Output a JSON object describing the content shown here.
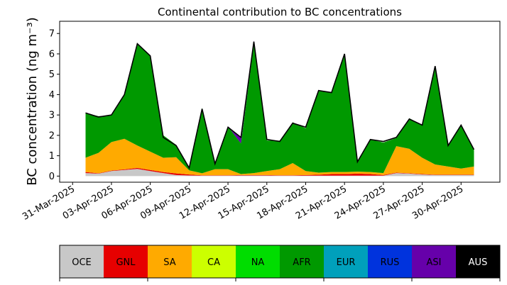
{
  "chart_data": {
    "type": "area",
    "stacked": true,
    "title": "Continental contribution to BC concentrations",
    "xlabel": "",
    "ylabel": "BC concentration (ng m⁻³)",
    "ylim": [
      -0.3,
      7.6
    ],
    "yticks": [
      0,
      1,
      2,
      3,
      4,
      5,
      6,
      7
    ],
    "xlim": [
      "2025-03-30",
      "2025-05-03"
    ],
    "xticks": [
      "2025-03-31",
      "2025-04-03",
      "2025-04-06",
      "2025-04-09",
      "2025-04-12",
      "2025-04-15",
      "2025-04-18",
      "2025-04-21",
      "2025-04-24",
      "2025-04-27",
      "2025-04-30"
    ],
    "xtick_labels": [
      "31-Mar-2025",
      "03-Apr-2025",
      "06-Apr-2025",
      "09-Apr-2025",
      "12-Apr-2025",
      "15-Apr-2025",
      "18-Apr-2025",
      "21-Apr-2025",
      "24-Apr-2025",
      "27-Apr-2025",
      "30-Apr-2025"
    ],
    "grid": false,
    "x": [
      "2025-04-01",
      "2025-04-02",
      "2025-04-03",
      "2025-04-04",
      "2025-04-05",
      "2025-04-06",
      "2025-04-07",
      "2025-04-08",
      "2025-04-09",
      "2025-04-10",
      "2025-04-11",
      "2025-04-12",
      "2025-04-13",
      "2025-04-14",
      "2025-04-15",
      "2025-04-16",
      "2025-04-17",
      "2025-04-18",
      "2025-04-19",
      "2025-04-20",
      "2025-04-21",
      "2025-04-22",
      "2025-04-23",
      "2025-04-24",
      "2025-04-25",
      "2025-04-26",
      "2025-04-27",
      "2025-04-28",
      "2025-04-29",
      "2025-04-30",
      "2025-05-01"
    ],
    "series": [
      {
        "name": "OCE",
        "color": "#c8c8c8",
        "values": [
          0.15,
          0.12,
          0.25,
          0.3,
          0.35,
          0.25,
          0.15,
          0.05,
          0.03,
          0.02,
          0.02,
          0.02,
          0.03,
          0.03,
          0.03,
          0.02,
          0.02,
          0.02,
          0.02,
          0.02,
          0.02,
          0.02,
          0.02,
          0.02,
          0.15,
          0.12,
          0.08,
          0.05,
          0.05,
          0.05,
          0.05
        ]
      },
      {
        "name": "GNL",
        "color": "#e60000",
        "values": [
          0.05,
          0.02,
          0.02,
          0.03,
          0.05,
          0.05,
          0.05,
          0.08,
          0.05,
          0.02,
          0.02,
          0.02,
          0.02,
          0.02,
          0.02,
          0.02,
          0.02,
          0.03,
          0.05,
          0.08,
          0.08,
          0.1,
          0.08,
          0.03,
          0.02,
          0.02,
          0.02,
          0.02,
          0.02,
          0.02,
          0.02
        ]
      },
      {
        "name": "SA",
        "color": "#ffaa00",
        "values": [
          0.7,
          1.0,
          1.4,
          1.5,
          1.1,
          0.9,
          0.7,
          0.8,
          0.2,
          0.1,
          0.3,
          0.3,
          0.05,
          0.1,
          0.2,
          0.3,
          0.6,
          0.2,
          0.1,
          0.1,
          0.1,
          0.1,
          0.1,
          0.1,
          1.3,
          1.2,
          0.8,
          0.5,
          0.4,
          0.3,
          0.4
        ]
      },
      {
        "name": "AFR",
        "color": "#009900",
        "values": [
          2.2,
          1.8,
          1.3,
          2.2,
          5.0,
          4.7,
          1.1,
          0.6,
          0.1,
          3.2,
          0.3,
          2.1,
          1.5,
          6.3,
          1.5,
          1.4,
          2.0,
          2.1,
          4.0,
          3.9,
          5.8,
          0.5,
          1.6,
          1.5,
          0.4,
          1.5,
          1.6,
          4.8,
          1.0,
          2.1,
          0.8
        ]
      },
      {
        "name": "ASI",
        "color": "#6600aa",
        "values": [
          0.0,
          0.0,
          0.0,
          0.0,
          0.0,
          0.0,
          0.0,
          0.0,
          0.0,
          0.0,
          0.0,
          0.0,
          0.3,
          0.2,
          0.0,
          0.0,
          0.0,
          0.0,
          0.0,
          0.0,
          0.0,
          0.0,
          0.0,
          0.0,
          0.0,
          0.0,
          0.0,
          0.0,
          0.0,
          0.0,
          0.0
        ]
      }
    ],
    "total_line": {
      "color": "#000000",
      "values": [
        3.1,
        2.9,
        3.0,
        4.0,
        6.5,
        5.9,
        1.9,
        1.5,
        0.4,
        3.3,
        0.6,
        2.4,
        1.9,
        6.6,
        1.8,
        1.7,
        2.6,
        2.4,
        4.2,
        4.1,
        6.0,
        0.7,
        1.8,
        1.7,
        1.9,
        2.8,
        2.5,
        5.4,
        1.5,
        2.5,
        1.3
      ]
    }
  },
  "colorbar": {
    "labels": [
      "OCE",
      "GNL",
      "SA",
      "CA",
      "NA",
      "AFR",
      "EUR",
      "RUS",
      "ASI",
      "AUS"
    ],
    "colors": [
      "#c8c8c8",
      "#e60000",
      "#ffaa00",
      "#ccff00",
      "#00dd00",
      "#009900",
      "#00a0bb",
      "#0033dd",
      "#6600aa",
      "#000000"
    ],
    "text_colors": [
      "#000000",
      "#000000",
      "#000000",
      "#000000",
      "#000000",
      "#000000",
      "#000000",
      "#000000",
      "#000000",
      "#ffffff"
    ]
  }
}
